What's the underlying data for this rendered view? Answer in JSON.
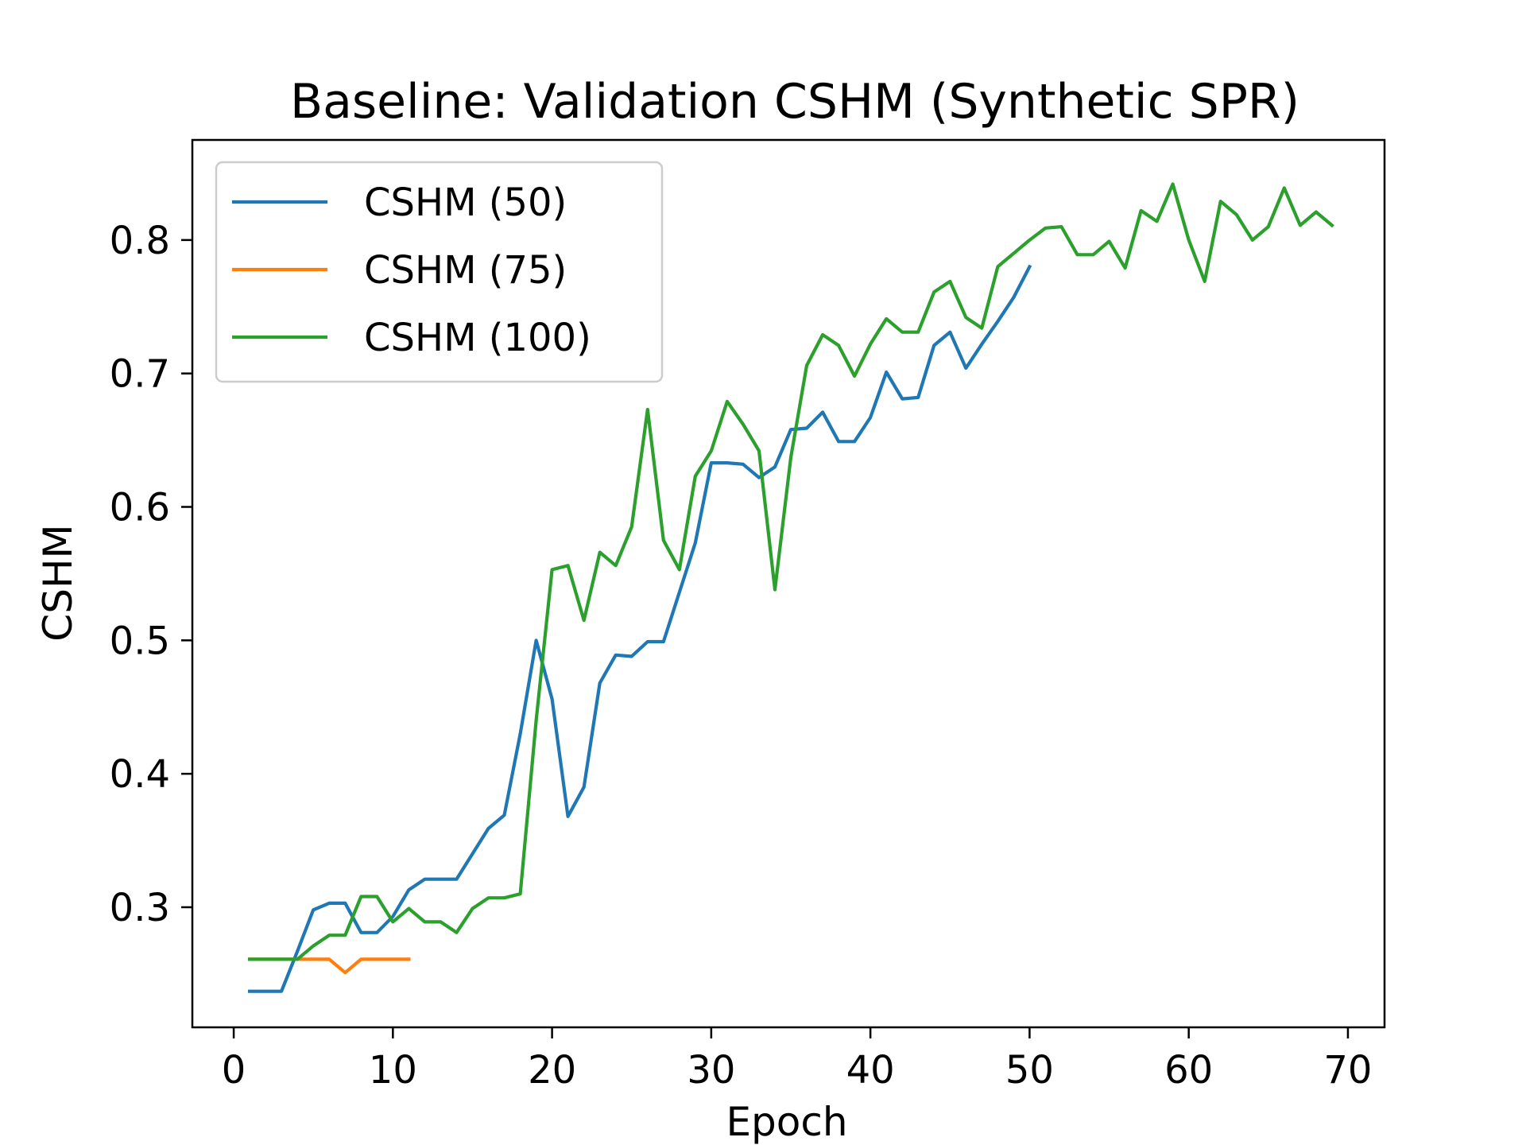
{
  "chart_data": {
    "type": "line",
    "title": "Baseline: Validation CSHM (Synthetic SPR)",
    "xlabel": "Epoch",
    "ylabel": "CSHM",
    "xlim": [
      -2.6,
      72.3
    ],
    "ylim": [
      0.21,
      0.875
    ],
    "xticks": [
      0,
      10,
      20,
      30,
      40,
      50,
      60,
      70
    ],
    "xtick_labels": [
      "0",
      "10",
      "20",
      "30",
      "40",
      "50",
      "60",
      "70"
    ],
    "yticks": [
      0.3,
      0.4,
      0.5,
      0.6,
      0.7,
      0.8
    ],
    "ytick_labels": [
      "0.3",
      "0.4",
      "0.5",
      "0.6",
      "0.7",
      "0.8"
    ],
    "grid": false,
    "legend_position": "top-left",
    "series": [
      {
        "name": "CSHM (50)",
        "color": "#1f77b4",
        "x": [
          1,
          2,
          3,
          4,
          5,
          6,
          7,
          8,
          9,
          10,
          11,
          12,
          13,
          14,
          15,
          16,
          17,
          18,
          19,
          20,
          21,
          22,
          23,
          24,
          25,
          26,
          27,
          28,
          29,
          30,
          31,
          32,
          33,
          34,
          35,
          36,
          37,
          38,
          39,
          40,
          41,
          42,
          43,
          44,
          45,
          46,
          47,
          48,
          49,
          50
        ],
        "y": [
          0.237,
          0.237,
          0.237,
          0.267,
          0.298,
          0.303,
          0.303,
          0.281,
          0.281,
          0.293,
          0.313,
          0.321,
          0.321,
          0.321,
          0.34,
          0.359,
          0.369,
          0.43,
          0.5,
          0.456,
          0.368,
          0.39,
          0.468,
          0.489,
          0.488,
          0.499,
          0.499,
          0.536,
          0.573,
          0.633,
          0.633,
          0.632,
          0.622,
          0.63,
          0.658,
          0.659,
          0.671,
          0.649,
          0.649,
          0.667,
          0.701,
          0.681,
          0.682,
          0.721,
          0.731,
          0.704,
          0.722,
          0.739,
          0.757,
          0.78
        ]
      },
      {
        "name": "CSHM (75)",
        "color": "#ff7f0e",
        "x": [
          1,
          2,
          3,
          4,
          5,
          6,
          7,
          8,
          9,
          10,
          11
        ],
        "y": [
          0.261,
          0.261,
          0.261,
          0.261,
          0.261,
          0.261,
          0.251,
          0.261,
          0.261,
          0.261,
          0.261
        ]
      },
      {
        "name": "CSHM (100)",
        "color": "#2ca02c",
        "x": [
          1,
          2,
          3,
          4,
          5,
          6,
          7,
          8,
          9,
          10,
          11,
          12,
          13,
          14,
          15,
          16,
          17,
          18,
          19,
          20,
          21,
          22,
          23,
          24,
          25,
          26,
          27,
          28,
          29,
          30,
          31,
          32,
          33,
          34,
          35,
          36,
          37,
          38,
          39,
          40,
          41,
          42,
          43,
          44,
          45,
          46,
          47,
          48,
          49,
          50,
          51,
          52,
          53,
          54,
          55,
          56,
          57,
          58,
          59,
          60,
          61,
          62,
          63,
          64,
          65,
          66,
          67,
          68,
          69
        ],
        "y": [
          0.261,
          0.261,
          0.261,
          0.261,
          0.271,
          0.279,
          0.279,
          0.308,
          0.308,
          0.289,
          0.299,
          0.289,
          0.289,
          0.281,
          0.299,
          0.307,
          0.307,
          0.31,
          0.44,
          0.553,
          0.556,
          0.515,
          0.566,
          0.556,
          0.585,
          0.673,
          0.575,
          0.553,
          0.623,
          0.642,
          0.679,
          0.662,
          0.642,
          0.538,
          0.637,
          0.706,
          0.729,
          0.721,
          0.698,
          0.722,
          0.741,
          0.731,
          0.731,
          0.761,
          0.769,
          0.742,
          0.734,
          0.78,
          0.79,
          0.8,
          0.809,
          0.81,
          0.789,
          0.789,
          0.799,
          0.779,
          0.822,
          0.814,
          0.842,
          0.8,
          0.769,
          0.829,
          0.819,
          0.8,
          0.81,
          0.839,
          0.811,
          0.821,
          0.811
        ]
      }
    ]
  }
}
